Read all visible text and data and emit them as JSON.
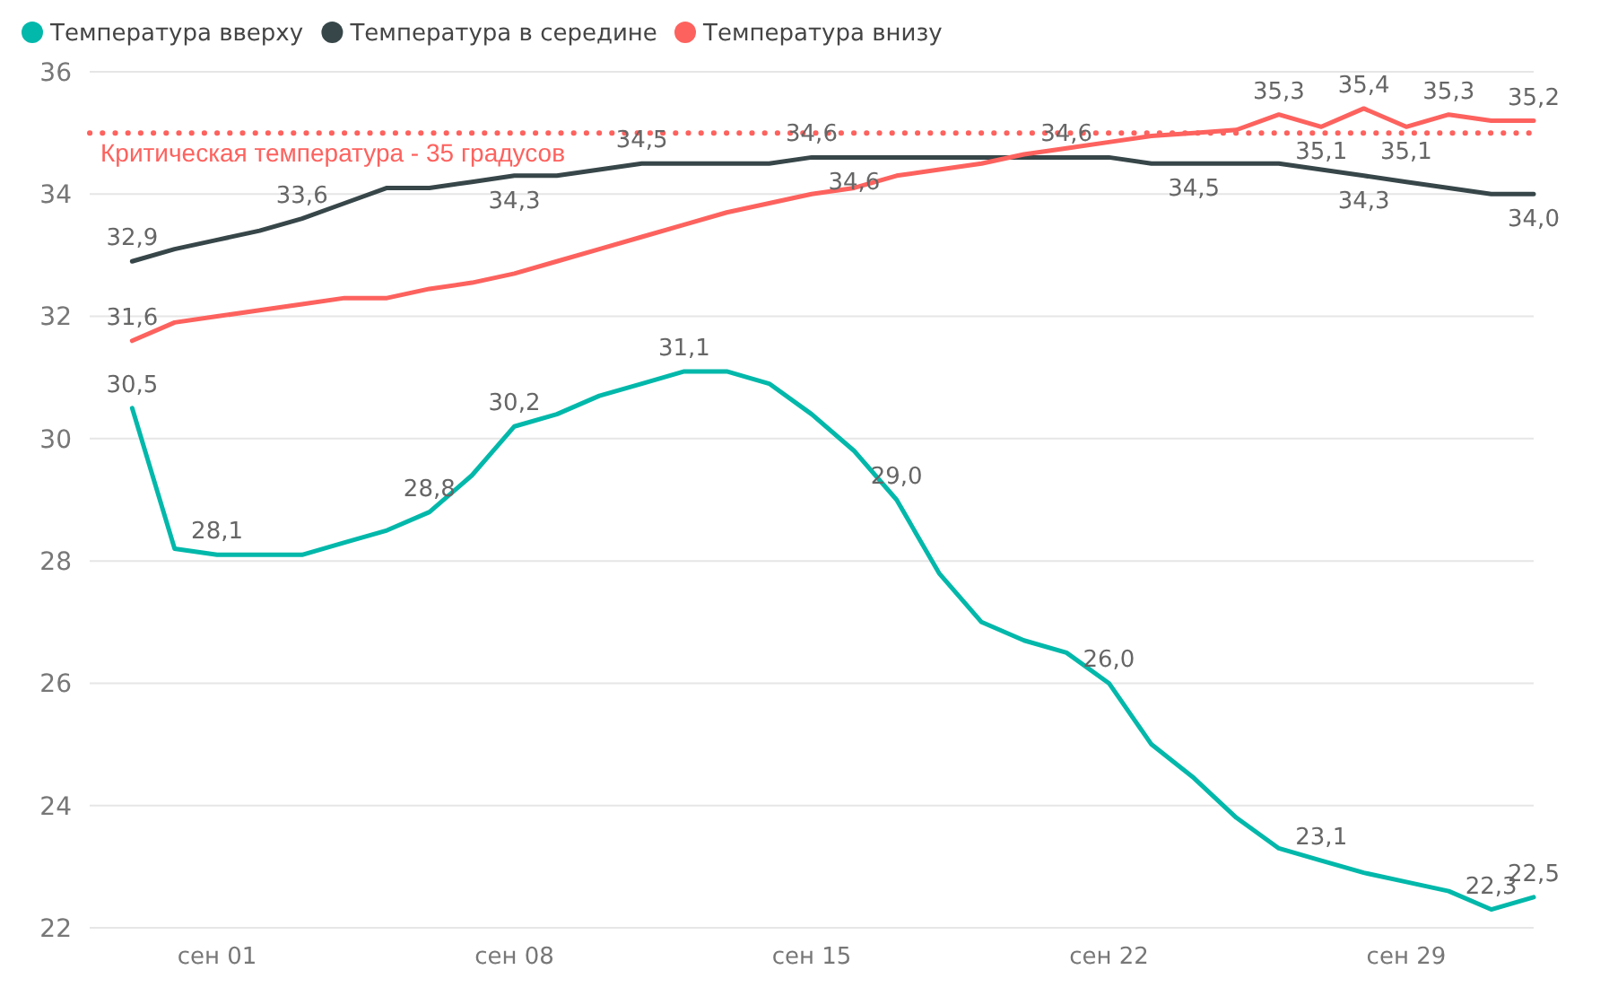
{
  "chart_data": {
    "type": "line",
    "x": [
      "--08-30",
      "--08-31",
      "--09-01",
      "--09-02",
      "--09-03",
      "--09-04",
      "--09-05",
      "--09-06",
      "--09-07",
      "--09-08",
      "--09-09",
      "--09-10",
      "--09-11",
      "--09-12",
      "--09-13",
      "--09-14",
      "--09-15",
      "--09-16",
      "--09-17",
      "--09-18",
      "--09-19",
      "--09-20",
      "--09-21",
      "--09-22",
      "--09-23",
      "--09-24",
      "--09-25",
      "--09-26",
      "--09-27",
      "--09-28",
      "--09-29",
      "--09-30",
      "--10-01",
      "--10-02"
    ],
    "series": [
      {
        "name": "Температура вверху",
        "color": "#01b8aa",
        "values": [
          30.5,
          28.2,
          28.1,
          28.1,
          28.1,
          28.3,
          28.5,
          28.8,
          29.4,
          30.2,
          30.4,
          30.7,
          30.9,
          31.1,
          31.1,
          30.9,
          30.4,
          29.8,
          29.0,
          27.8,
          27.0,
          26.7,
          26.5,
          26.0,
          25.0,
          24.45,
          23.8,
          23.3,
          23.1,
          22.9,
          22.75,
          22.6,
          22.3,
          22.5
        ],
        "value_labels": [
          "30,5",
          null,
          "28,1",
          null,
          null,
          null,
          null,
          "28,8",
          null,
          "30,2",
          null,
          null,
          null,
          "31,1",
          null,
          null,
          null,
          null,
          "29,0",
          null,
          null,
          null,
          null,
          "26,0",
          null,
          null,
          null,
          null,
          "23,1",
          null,
          null,
          null,
          "22,3",
          "22,5"
        ]
      },
      {
        "name": "Температура в середине",
        "color": "#374649",
        "values": [
          32.9,
          33.1,
          33.25,
          33.4,
          33.6,
          33.85,
          34.1,
          34.1,
          34.2,
          34.3,
          34.3,
          34.4,
          34.5,
          34.5,
          34.5,
          34.5,
          34.6,
          34.6,
          34.6,
          34.6,
          34.6,
          34.6,
          34.6,
          34.6,
          34.5,
          34.5,
          34.5,
          34.5,
          34.4,
          34.3,
          34.2,
          34.1,
          34.0,
          34.0
        ],
        "value_labels": [
          "32,9",
          null,
          null,
          null,
          "33,6",
          null,
          null,
          null,
          null,
          "34,3",
          null,
          null,
          "34,5",
          null,
          null,
          null,
          "34,6",
          "34,6",
          null,
          null,
          null,
          null,
          "34,6",
          null,
          null,
          "34,5",
          null,
          null,
          null,
          "34,3",
          null,
          null,
          null,
          "34,0"
        ]
      },
      {
        "name": "Температура внизу",
        "color": "#fd625e",
        "values": [
          31.6,
          31.9,
          32.0,
          32.1,
          32.2,
          32.3,
          32.3,
          32.45,
          32.55,
          32.7,
          32.9,
          33.1,
          33.3,
          33.5,
          33.7,
          33.85,
          34.0,
          34.1,
          34.3,
          34.4,
          34.5,
          34.65,
          34.75,
          34.85,
          34.95,
          35.0,
          35.05,
          35.3,
          35.1,
          35.4,
          35.1,
          35.3,
          35.2,
          35.2
        ],
        "value_labels": [
          "31,6",
          null,
          null,
          null,
          null,
          null,
          null,
          null,
          null,
          null,
          null,
          null,
          null,
          null,
          null,
          null,
          null,
          null,
          null,
          null,
          null,
          null,
          null,
          null,
          null,
          null,
          null,
          "35,3",
          "35,1",
          "35,4",
          "35,1",
          "35,3",
          null,
          "35,2"
        ]
      }
    ],
    "xlim": [
      "--08-29",
      "--10-02"
    ],
    "xticks": [
      {
        "value": "--09-01",
        "label": "сен 01"
      },
      {
        "value": "--09-08",
        "label": "сен 08"
      },
      {
        "value": "--09-15",
        "label": "сен 15"
      },
      {
        "value": "--09-22",
        "label": "сен 22"
      },
      {
        "value": "--09-29",
        "label": "сен 29"
      }
    ],
    "ylim": [
      22,
      36
    ],
    "yticks": [
      22,
      24,
      26,
      28,
      30,
      32,
      34,
      36
    ],
    "ref_lines": [
      {
        "axis": "y",
        "value": 35,
        "label": "Критическая температура - 35 градусов",
        "color": "#fd625e",
        "line_style": "dotted"
      }
    ],
    "grid": "y",
    "legend": "top left",
    "marker": "none",
    "line_style": "solid"
  }
}
